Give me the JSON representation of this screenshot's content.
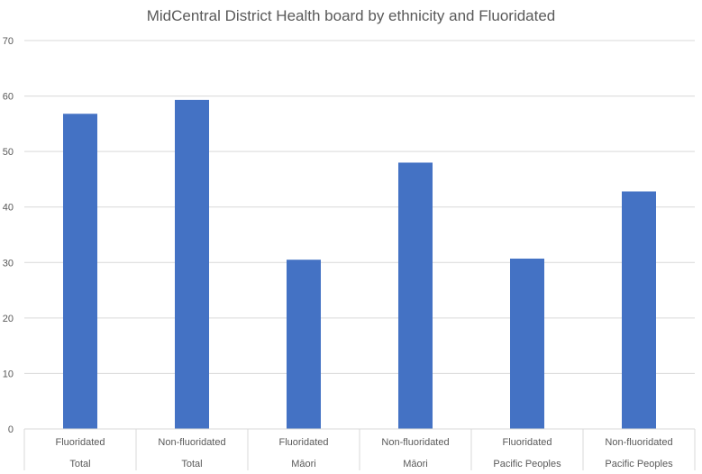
{
  "chart_data": {
    "type": "bar",
    "title": "MidCentral District Health board by ethnicity and Fluoridated",
    "xlabel": "",
    "ylabel": "",
    "ylim": [
      0,
      70
    ],
    "yticks": [
      0,
      10,
      20,
      30,
      40,
      50,
      60,
      70
    ],
    "grid": true,
    "legend": "none",
    "bar_color": "#4472c4",
    "categories": [
      {
        "sub": "Fluoridated",
        "group": "Total"
      },
      {
        "sub": "Non-fluoridated",
        "group": "Total"
      },
      {
        "sub": "Fluoridated",
        "group": "Māori"
      },
      {
        "sub": "Non-fluoridated",
        "group": "Māori"
      },
      {
        "sub": "Fluoridated",
        "group": "Pacific Peoples"
      },
      {
        "sub": "Non-fluoridated",
        "group": "Pacific Peoples"
      }
    ],
    "values": [
      56.8,
      59.3,
      30.5,
      48.0,
      30.7,
      42.8
    ]
  }
}
